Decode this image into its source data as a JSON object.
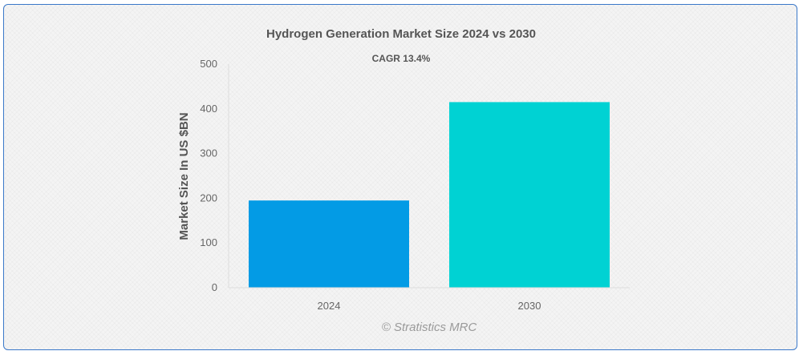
{
  "chart_data": {
    "type": "bar",
    "title": "Hydrogen Generation Market Size 2024 vs 2030",
    "subtitle": "CAGR 13.4%",
    "xlabel": "",
    "ylabel": "Market Size In US $BN",
    "categories": [
      "2024",
      "2030"
    ],
    "values": [
      195,
      415
    ],
    "ylim": [
      0,
      500
    ],
    "yticks": [
      0,
      100,
      200,
      300,
      400,
      500
    ],
    "grid": false,
    "legend": "none",
    "colors": [
      "#039be5",
      "#00d2d3"
    ]
  },
  "watermark": "© Stratistics MRC"
}
